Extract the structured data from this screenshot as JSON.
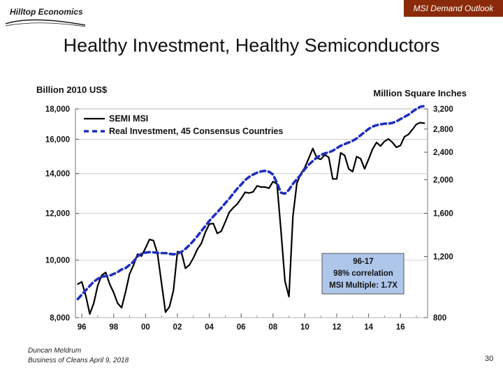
{
  "header": {
    "logo_text": "Hilltop Economics",
    "badge_text": "MSI Demand Outlook",
    "badge_color": "#8a2a0a"
  },
  "slide": {
    "title": "Healthy Investment, Healthy Semiconductors",
    "footer_line1": "Duncan Meldrum",
    "footer_line2": "Business of Cleans April 9, 2018",
    "page_number": "30"
  },
  "chart_data": {
    "type": "line",
    "left_axis": {
      "label": "Billion 2010 US$",
      "scale": "log",
      "range": [
        8000,
        18000
      ],
      "ticks": [
        "8,000",
        "10,000",
        "12,000",
        "14,000",
        "16,000",
        "18,000"
      ],
      "tick_values": [
        8000,
        10000,
        12000,
        14000,
        16000,
        18000
      ]
    },
    "right_axis": {
      "label": "Million Square Inches",
      "scale": "log",
      "range": [
        800,
        3200
      ],
      "ticks": [
        "800",
        "1,200",
        "1,600",
        "2,000",
        "2,400",
        "2,800",
        "3,200"
      ],
      "tick_values": [
        800,
        1200,
        1600,
        2000,
        2400,
        2800,
        3200
      ]
    },
    "x_axis": {
      "range": [
        1995.6,
        2017.7
      ],
      "ticks": [
        "96",
        "98",
        "00",
        "02",
        "04",
        "06",
        "08",
        "10",
        "12",
        "14",
        "16"
      ],
      "tick_values": [
        1996,
        1998,
        2000,
        2002,
        2004,
        2006,
        2008,
        2010,
        2012,
        2014,
        2016
      ]
    },
    "legend": [
      "SEMI MSI",
      "Real Investment, 45 Consensus Countries"
    ],
    "annotation": [
      "96-17",
      "98% correlation",
      "MSI Multiple: 1.7X"
    ],
    "series": [
      {
        "name": "SEMI MSI",
        "axis": "right",
        "color": "#000000",
        "style": "solid",
        "x": [
          1995.75,
          1996.0,
          1996.25,
          1996.5,
          1996.75,
          1997.0,
          1997.25,
          1997.5,
          1997.75,
          1998.0,
          1998.25,
          1998.5,
          1998.75,
          1999.0,
          1999.25,
          1999.5,
          1999.75,
          2000.0,
          2000.25,
          2000.5,
          2000.75,
          2001.0,
          2001.25,
          2001.5,
          2001.75,
          2002.0,
          2002.25,
          2002.5,
          2002.75,
          2003.0,
          2003.25,
          2003.5,
          2003.75,
          2004.0,
          2004.25,
          2004.5,
          2004.75,
          2005.0,
          2005.25,
          2005.5,
          2005.75,
          2006.0,
          2006.25,
          2006.5,
          2006.75,
          2007.0,
          2007.25,
          2007.5,
          2007.75,
          2008.0,
          2008.25,
          2008.5,
          2008.75,
          2009.0,
          2009.25,
          2009.5,
          2009.75,
          2010.0,
          2010.25,
          2010.5,
          2010.75,
          2011.0,
          2011.25,
          2011.5,
          2011.75,
          2012.0,
          2012.25,
          2012.5,
          2012.75,
          2013.0,
          2013.25,
          2013.5,
          2013.75,
          2014.0,
          2014.25,
          2014.5,
          2014.75,
          2015.0,
          2015.25,
          2015.5,
          2015.75,
          2016.0,
          2016.25,
          2016.5,
          2016.75,
          2017.0,
          2017.25,
          2017.5
        ],
        "values": [
          1000,
          1015,
          925,
          820,
          880,
          990,
          1060,
          1080,
          1000,
          945,
          880,
          855,
          950,
          1070,
          1135,
          1220,
          1205,
          1270,
          1345,
          1335,
          1225,
          1010,
          830,
          860,
          960,
          1240,
          1235,
          1110,
          1135,
          1190,
          1260,
          1310,
          1410,
          1490,
          1495,
          1400,
          1420,
          1510,
          1610,
          1660,
          1700,
          1765,
          1840,
          1830,
          1845,
          1920,
          1905,
          1905,
          1890,
          1975,
          1945,
          1425,
          1020,
          920,
          1570,
          1955,
          2080,
          2170,
          2310,
          2460,
          2310,
          2290,
          2360,
          2320,
          2010,
          2010,
          2390,
          2350,
          2150,
          2110,
          2330,
          2300,
          2150,
          2290,
          2450,
          2560,
          2500,
          2580,
          2620,
          2560,
          2480,
          2510,
          2660,
          2700,
          2790,
          2890,
          2920,
          2910
        ]
      },
      {
        "name": "Real Investment, 45 Consensus Countries",
        "axis": "left",
        "color": "#1f2fbf",
        "style": "dashed",
        "x": [
          1995.75,
          1996.0,
          1996.25,
          1996.5,
          1996.75,
          1997.0,
          1997.25,
          1997.5,
          1997.75,
          1998.0,
          1998.25,
          1998.5,
          1998.75,
          1999.0,
          1999.25,
          1999.5,
          1999.75,
          2000.0,
          2000.25,
          2000.5,
          2000.75,
          2001.0,
          2001.25,
          2001.5,
          2001.75,
          2002.0,
          2002.25,
          2002.5,
          2002.75,
          2003.0,
          2003.25,
          2003.5,
          2003.75,
          2004.0,
          2004.25,
          2004.5,
          2004.75,
          2005.0,
          2005.25,
          2005.5,
          2005.75,
          2006.0,
          2006.25,
          2006.5,
          2006.75,
          2007.0,
          2007.25,
          2007.5,
          2007.75,
          2008.0,
          2008.25,
          2008.5,
          2008.75,
          2009.0,
          2009.25,
          2009.5,
          2009.75,
          2010.0,
          2010.25,
          2010.5,
          2010.75,
          2011.0,
          2011.25,
          2011.5,
          2011.75,
          2012.0,
          2012.25,
          2012.5,
          2012.75,
          2013.0,
          2013.25,
          2013.5,
          2013.75,
          2014.0,
          2014.25,
          2014.5,
          2014.75,
          2015.0,
          2015.25,
          2015.5,
          2015.75,
          2016.0,
          2016.25,
          2016.5,
          2016.75,
          2017.0,
          2017.25,
          2017.5
        ],
        "values": [
          8600,
          8750,
          8900,
          9050,
          9200,
          9300,
          9380,
          9400,
          9420,
          9480,
          9550,
          9650,
          9700,
          9820,
          9950,
          10150,
          10250,
          10300,
          10320,
          10310,
          10290,
          10280,
          10280,
          10250,
          10230,
          10260,
          10330,
          10450,
          10600,
          10780,
          10980,
          11200,
          11420,
          11650,
          11850,
          12050,
          12250,
          12480,
          12700,
          12950,
          13200,
          13420,
          13650,
          13820,
          13950,
          14050,
          14120,
          14150,
          14100,
          13950,
          13500,
          13000,
          12950,
          13150,
          13450,
          13700,
          13950,
          14250,
          14500,
          14700,
          14900,
          15050,
          15150,
          15200,
          15300,
          15450,
          15600,
          15700,
          15800,
          15900,
          16050,
          16250,
          16450,
          16650,
          16800,
          16900,
          16950,
          17000,
          17000,
          17050,
          17150,
          17300,
          17450,
          17600,
          17800,
          18000,
          18150,
          18200
        ]
      }
    ]
  }
}
